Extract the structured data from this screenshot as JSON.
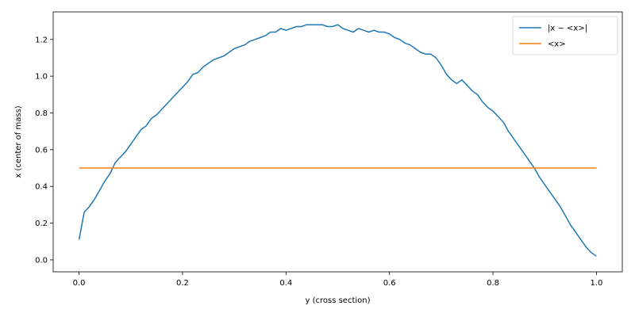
{
  "chart_data": {
    "type": "line",
    "xlabel": "y (cross section)",
    "ylabel": "x (center of mass)",
    "xlim": [
      -0.05,
      1.05
    ],
    "ylim": [
      -0.065,
      1.35
    ],
    "xticks": [
      0.0,
      0.2,
      0.4,
      0.6,
      0.8,
      1.0
    ],
    "xtick_labels": [
      "0.0",
      "0.2",
      "0.4",
      "0.6",
      "0.8",
      "1.0"
    ],
    "yticks": [
      0.0,
      0.2,
      0.4,
      0.6,
      0.8,
      1.0,
      1.2
    ],
    "ytick_labels": [
      "0.0",
      "0.2",
      "0.4",
      "0.6",
      "0.8",
      "1.0",
      "1.2"
    ],
    "grid": false,
    "legend_position": "top-right",
    "series": [
      {
        "name": "|x − <x>|",
        "color": "#1f77b4",
        "x": [
          0.0,
          0.01,
          0.02,
          0.03,
          0.04,
          0.05,
          0.06,
          0.07,
          0.08,
          0.09,
          0.1,
          0.11,
          0.12,
          0.13,
          0.14,
          0.15,
          0.16,
          0.17,
          0.18,
          0.19,
          0.2,
          0.21,
          0.22,
          0.23,
          0.24,
          0.25,
          0.26,
          0.27,
          0.28,
          0.29,
          0.3,
          0.31,
          0.32,
          0.33,
          0.34,
          0.35,
          0.36,
          0.37,
          0.38,
          0.39,
          0.4,
          0.41,
          0.42,
          0.43,
          0.44,
          0.45,
          0.46,
          0.47,
          0.48,
          0.49,
          0.5,
          0.51,
          0.52,
          0.53,
          0.54,
          0.55,
          0.56,
          0.57,
          0.58,
          0.59,
          0.6,
          0.61,
          0.62,
          0.63,
          0.64,
          0.65,
          0.66,
          0.67,
          0.68,
          0.69,
          0.7,
          0.71,
          0.72,
          0.73,
          0.74,
          0.75,
          0.76,
          0.77,
          0.78,
          0.79,
          0.8,
          0.81,
          0.82,
          0.83,
          0.84,
          0.85,
          0.86,
          0.87,
          0.88,
          0.89,
          0.9,
          0.91,
          0.92,
          0.93,
          0.94,
          0.95,
          0.96,
          0.97,
          0.98,
          0.99,
          1.0
        ],
        "values": [
          0.11,
          0.26,
          0.29,
          0.33,
          0.38,
          0.43,
          0.47,
          0.53,
          0.56,
          0.59,
          0.63,
          0.67,
          0.71,
          0.73,
          0.77,
          0.79,
          0.82,
          0.85,
          0.88,
          0.91,
          0.94,
          0.97,
          1.01,
          1.02,
          1.05,
          1.07,
          1.09,
          1.1,
          1.11,
          1.13,
          1.15,
          1.16,
          1.17,
          1.19,
          1.2,
          1.21,
          1.22,
          1.24,
          1.24,
          1.26,
          1.25,
          1.26,
          1.27,
          1.27,
          1.28,
          1.28,
          1.28,
          1.28,
          1.27,
          1.27,
          1.28,
          1.26,
          1.25,
          1.24,
          1.26,
          1.25,
          1.24,
          1.25,
          1.24,
          1.24,
          1.23,
          1.21,
          1.2,
          1.18,
          1.17,
          1.15,
          1.13,
          1.12,
          1.12,
          1.1,
          1.06,
          1.01,
          0.98,
          0.96,
          0.98,
          0.95,
          0.92,
          0.9,
          0.86,
          0.83,
          0.81,
          0.78,
          0.75,
          0.7,
          0.66,
          0.62,
          0.58,
          0.54,
          0.5,
          0.45,
          0.41,
          0.37,
          0.33,
          0.29,
          0.24,
          0.19,
          0.15,
          0.11,
          0.07,
          0.04,
          0.02
        ]
      },
      {
        "name": "<x>",
        "color": "#ff7f0e",
        "x": [
          0.0,
          0.05,
          0.1,
          0.15,
          0.2,
          0.25,
          0.3,
          0.35,
          0.4,
          0.45,
          0.5,
          0.55,
          0.6,
          0.65,
          0.7,
          0.75,
          0.8,
          0.85,
          0.9,
          0.95,
          1.0
        ],
        "values": [
          0.5,
          0.5,
          0.5,
          0.5,
          0.5,
          0.5,
          0.5,
          0.5,
          0.5,
          0.5,
          0.5,
          0.5,
          0.5,
          0.5,
          0.5,
          0.5,
          0.5,
          0.5,
          0.5,
          0.5,
          0.5
        ]
      }
    ]
  }
}
